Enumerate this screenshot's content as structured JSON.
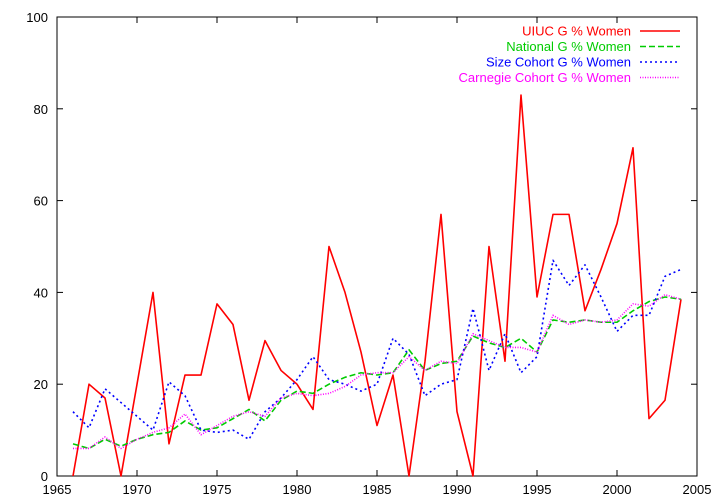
{
  "chart_data": {
    "type": "line",
    "title": "",
    "xlabel": "",
    "ylabel": "",
    "xlim": [
      1965,
      2005
    ],
    "ylim": [
      0,
      100
    ],
    "xticks": [
      1965,
      1970,
      1975,
      1980,
      1985,
      1990,
      1995,
      2000,
      2005
    ],
    "yticks": [
      0,
      20,
      40,
      60,
      80,
      100
    ],
    "grid": false,
    "legend_position": "top-right",
    "x": [
      1966,
      1967,
      1968,
      1969,
      1970,
      1971,
      1972,
      1973,
      1974,
      1975,
      1976,
      1977,
      1978,
      1979,
      1980,
      1981,
      1982,
      1983,
      1984,
      1985,
      1986,
      1987,
      1988,
      1989,
      1990,
      1991,
      1992,
      1993,
      1994,
      1995,
      1996,
      1997,
      1998,
      1999,
      2000,
      2001,
      2002,
      2003,
      2004
    ],
    "series": [
      {
        "name": "UIUC G % Women",
        "color": "#ff0000",
        "dash": "solid",
        "values": [
          0,
          20,
          17,
          0,
          20,
          40,
          7,
          22,
          22,
          37.5,
          33,
          16.5,
          29.5,
          23,
          20,
          14.5,
          50,
          40,
          27,
          11,
          22,
          0,
          25,
          57,
          14,
          0,
          50,
          25,
          83,
          39,
          57,
          57,
          36,
          45,
          55,
          71.5,
          12.5,
          16.5,
          38.5
        ]
      },
      {
        "name": "National G % Women",
        "color": "#00cc00",
        "dash": "dashed",
        "values": [
          7,
          6,
          8,
          6.5,
          8,
          9,
          9.5,
          12,
          10,
          10.5,
          12.5,
          14.5,
          12,
          16.5,
          18.5,
          18,
          20,
          21.5,
          22.5,
          22,
          22.5,
          27.5,
          23,
          24.5,
          25,
          30.5,
          29,
          28,
          30,
          27,
          34,
          33.5,
          34,
          33.5,
          33.5,
          36,
          38,
          39,
          38.5
        ]
      },
      {
        "name": "Size Cohort G % Women",
        "color": "#0000ff",
        "dash": "dotted",
        "values": [
          14,
          10.5,
          19,
          16,
          13,
          10,
          20.5,
          17.5,
          10,
          9.5,
          10,
          8,
          14,
          17,
          21,
          26,
          21,
          20,
          18.5,
          20,
          30,
          26.5,
          17.5,
          20,
          21,
          36.5,
          23,
          31,
          22.5,
          26,
          47,
          41.5,
          46,
          39,
          31.5,
          35,
          35,
          43.5,
          45
        ]
      },
      {
        "name": "Carnegie Cohort G % Women",
        "color": "#ff00ff",
        "dash": "densedot",
        "values": [
          6,
          6,
          8.5,
          6,
          8,
          9.5,
          10.5,
          13.5,
          9,
          11,
          13,
          14,
          13,
          17,
          18,
          17.5,
          18,
          19.5,
          22,
          22.5,
          22.5,
          26,
          23,
          25,
          24.5,
          31,
          29.5,
          28,
          28,
          27,
          35,
          33,
          34,
          33.5,
          34,
          37.5,
          37,
          39.5,
          38.5
        ]
      }
    ]
  }
}
